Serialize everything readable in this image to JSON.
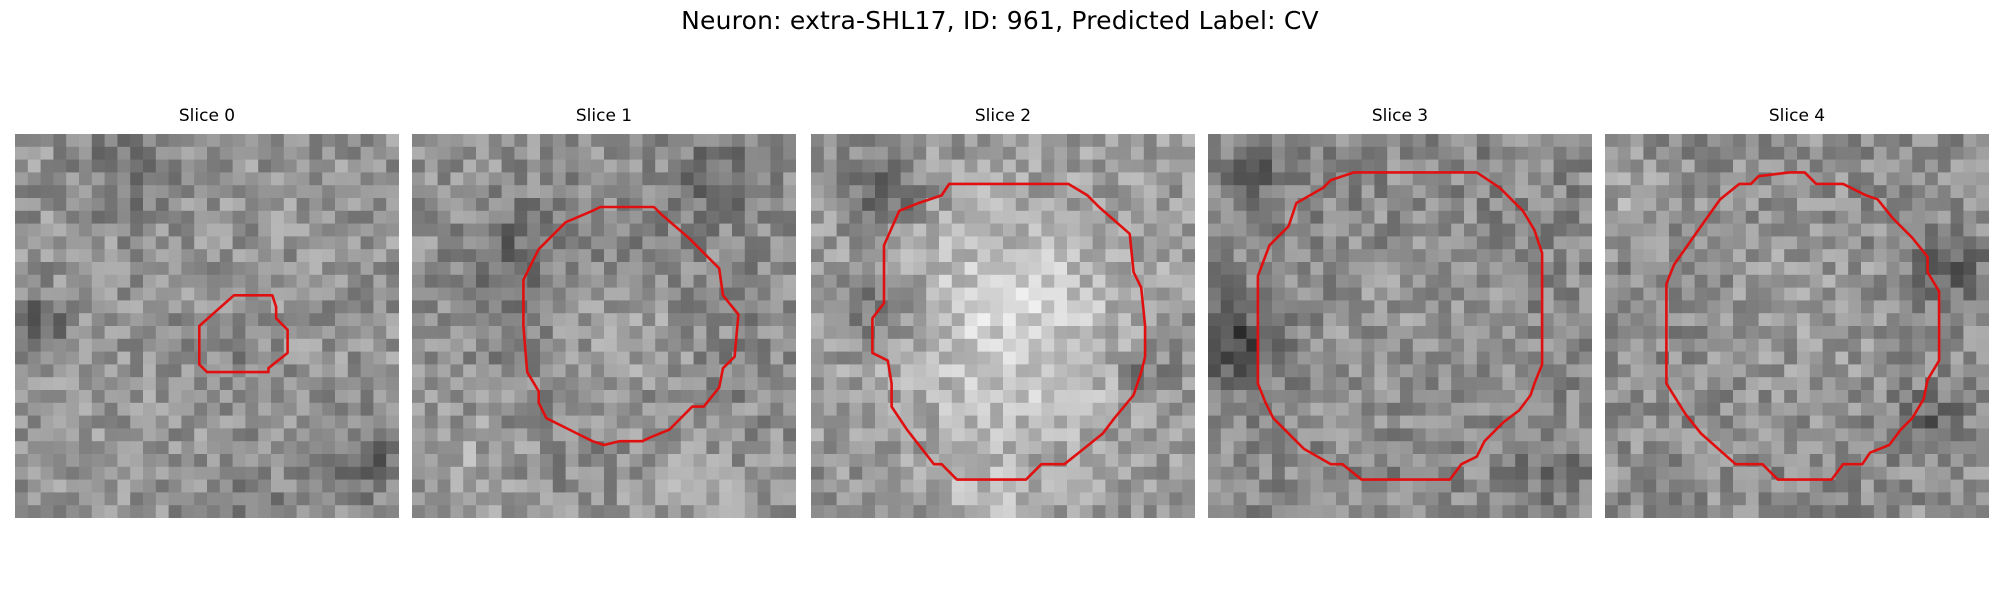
{
  "figure": {
    "title": "Neuron: extra-SHL17, ID: 961, Predicted Label: CV",
    "contour_color": "#e01010",
    "colormap": "grayscale"
  },
  "panels": [
    {
      "title": "Slice 0",
      "contour": [
        [
          0.48,
          0.6
        ],
        [
          0.48,
          0.5
        ],
        [
          0.57,
          0.42
        ],
        [
          0.67,
          0.42
        ],
        [
          0.68,
          0.45
        ],
        [
          0.68,
          0.48
        ],
        [
          0.71,
          0.51
        ],
        [
          0.71,
          0.57
        ],
        [
          0.66,
          0.61
        ],
        [
          0.66,
          0.62
        ],
        [
          0.5,
          0.62
        ]
      ]
    },
    {
      "title": "Slice 1",
      "contour": [
        [
          0.3,
          0.62
        ],
        [
          0.29,
          0.5
        ],
        [
          0.29,
          0.38
        ],
        [
          0.33,
          0.3
        ],
        [
          0.4,
          0.23
        ],
        [
          0.47,
          0.2
        ],
        [
          0.49,
          0.19
        ],
        [
          0.63,
          0.19
        ],
        [
          0.65,
          0.21
        ],
        [
          0.72,
          0.27
        ],
        [
          0.8,
          0.35
        ],
        [
          0.81,
          0.42
        ],
        [
          0.85,
          0.47
        ],
        [
          0.84,
          0.58
        ],
        [
          0.81,
          0.61
        ],
        [
          0.8,
          0.66
        ],
        [
          0.76,
          0.71
        ],
        [
          0.73,
          0.71
        ],
        [
          0.67,
          0.77
        ],
        [
          0.62,
          0.79
        ],
        [
          0.6,
          0.8
        ],
        [
          0.54,
          0.8
        ],
        [
          0.5,
          0.81
        ],
        [
          0.47,
          0.8
        ],
        [
          0.43,
          0.78
        ],
        [
          0.35,
          0.74
        ],
        [
          0.33,
          0.7
        ],
        [
          0.33,
          0.67
        ]
      ]
    },
    {
      "title": "Slice 2",
      "contour": [
        [
          0.2,
          0.59
        ],
        [
          0.16,
          0.57
        ],
        [
          0.16,
          0.48
        ],
        [
          0.19,
          0.44
        ],
        [
          0.19,
          0.29
        ],
        [
          0.23,
          0.2
        ],
        [
          0.28,
          0.18
        ],
        [
          0.34,
          0.16
        ],
        [
          0.36,
          0.13
        ],
        [
          0.67,
          0.13
        ],
        [
          0.72,
          0.16
        ],
        [
          0.75,
          0.19
        ],
        [
          0.83,
          0.26
        ],
        [
          0.84,
          0.36
        ],
        [
          0.86,
          0.4
        ],
        [
          0.87,
          0.5
        ],
        [
          0.87,
          0.58
        ],
        [
          0.86,
          0.62
        ],
        [
          0.84,
          0.68
        ],
        [
          0.79,
          0.74
        ],
        [
          0.76,
          0.78
        ],
        [
          0.71,
          0.82
        ],
        [
          0.66,
          0.86
        ],
        [
          0.6,
          0.86
        ],
        [
          0.56,
          0.9
        ],
        [
          0.38,
          0.9
        ],
        [
          0.34,
          0.86
        ],
        [
          0.32,
          0.86
        ],
        [
          0.25,
          0.77
        ],
        [
          0.21,
          0.71
        ],
        [
          0.21,
          0.65
        ]
      ]
    },
    {
      "title": "Slice 3",
      "contour": [
        [
          0.13,
          0.65
        ],
        [
          0.13,
          0.37
        ],
        [
          0.16,
          0.29
        ],
        [
          0.21,
          0.24
        ],
        [
          0.23,
          0.18
        ],
        [
          0.3,
          0.14
        ],
        [
          0.32,
          0.12
        ],
        [
          0.38,
          0.1
        ],
        [
          0.7,
          0.1
        ],
        [
          0.76,
          0.14
        ],
        [
          0.82,
          0.2
        ],
        [
          0.85,
          0.25
        ],
        [
          0.86,
          0.28
        ],
        [
          0.87,
          0.31
        ],
        [
          0.87,
          0.6
        ],
        [
          0.85,
          0.65
        ],
        [
          0.84,
          0.68
        ],
        [
          0.81,
          0.72
        ],
        [
          0.77,
          0.75
        ],
        [
          0.72,
          0.8
        ],
        [
          0.7,
          0.84
        ],
        [
          0.66,
          0.86
        ],
        [
          0.63,
          0.9
        ],
        [
          0.4,
          0.9
        ],
        [
          0.35,
          0.86
        ],
        [
          0.32,
          0.86
        ],
        [
          0.25,
          0.82
        ],
        [
          0.2,
          0.77
        ],
        [
          0.17,
          0.74
        ],
        [
          0.15,
          0.7
        ]
      ]
    },
    {
      "title": "Slice 4",
      "contour": [
        [
          0.16,
          0.65
        ],
        [
          0.16,
          0.39
        ],
        [
          0.18,
          0.34
        ],
        [
          0.25,
          0.24
        ],
        [
          0.3,
          0.17
        ],
        [
          0.35,
          0.13
        ],
        [
          0.38,
          0.13
        ],
        [
          0.4,
          0.11
        ],
        [
          0.48,
          0.1
        ],
        [
          0.52,
          0.1
        ],
        [
          0.55,
          0.13
        ],
        [
          0.62,
          0.13
        ],
        [
          0.68,
          0.16
        ],
        [
          0.71,
          0.17
        ],
        [
          0.75,
          0.22
        ],
        [
          0.8,
          0.27
        ],
        [
          0.84,
          0.32
        ],
        [
          0.84,
          0.36
        ],
        [
          0.87,
          0.41
        ],
        [
          0.87,
          0.59
        ],
        [
          0.84,
          0.64
        ],
        [
          0.83,
          0.69
        ],
        [
          0.8,
          0.74
        ],
        [
          0.77,
          0.77
        ],
        [
          0.74,
          0.81
        ],
        [
          0.69,
          0.83
        ],
        [
          0.67,
          0.86
        ],
        [
          0.62,
          0.86
        ],
        [
          0.59,
          0.9
        ],
        [
          0.45,
          0.9
        ],
        [
          0.41,
          0.86
        ],
        [
          0.34,
          0.86
        ],
        [
          0.25,
          0.78
        ],
        [
          0.21,
          0.73
        ]
      ]
    }
  ]
}
